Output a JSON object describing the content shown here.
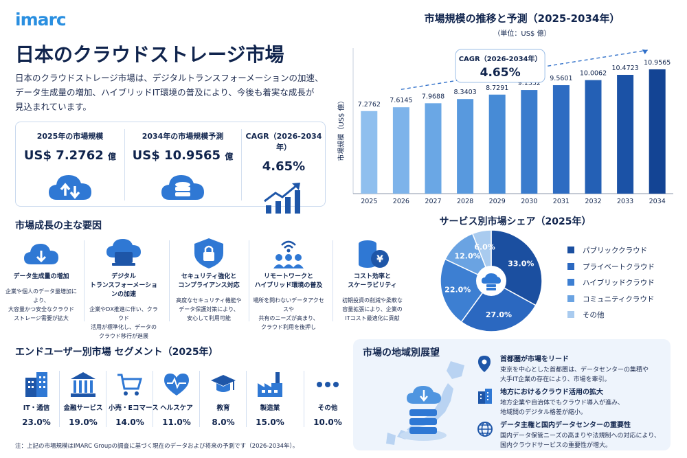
{
  "brand": {
    "logo": "imarc"
  },
  "title": "日本のクラウドストレージ市場",
  "intro": [
    "日本のクラウドストレージ市場は、デジタルトランスフォーメーションの加速、",
    "データ生成量の増加、ハイブリッドIT環境の普及により、今後も着実な成長が",
    "見込まれています。"
  ],
  "kpis": [
    {
      "title": "2025年の市場規模",
      "value": "US$ 7.2762",
      "unit": "億",
      "icon": "cloud-transfer-icon"
    },
    {
      "title": "2034年の市場規模予測",
      "value": "US$ 10.9565",
      "unit": "億",
      "icon": "cloud-database-icon"
    },
    {
      "title": "CAGR（2026-2034年）",
      "value": "4.65%",
      "unit": "",
      "icon": "growth-chart-icon"
    }
  ],
  "growth_drivers": {
    "heading": "市場成長の主な要因",
    "items": [
      {
        "icon": "cloud-download-icon",
        "title": [
          "データ生成量の増加"
        ],
        "desc": [
          "企業や個人のデータ量増加により、",
          "大容量かつ安全なクラウド",
          "ストレージ需要が拡大"
        ]
      },
      {
        "icon": "cloud-laptop-icon",
        "title": [
          "デジタル",
          "トランスフォーメーションの加速"
        ],
        "desc": [
          "企業やDX推進に伴い、クラウド",
          "活用が標準化し、データの",
          "クラウド移行が進展"
        ]
      },
      {
        "icon": "shield-lock-icon",
        "title": [
          "セキュリティ強化と",
          "コンプライアンス対応"
        ],
        "desc": [
          "高度なセキュリティ機能や",
          "データ保護対策により、",
          "安心して利用可能"
        ]
      },
      {
        "icon": "remote-team-icon",
        "title": [
          "リモートワークと",
          "ハイブリッド環境の普及"
        ],
        "desc": [
          "場所を問わないデータアクセスや",
          "共有のニーズが高まり、",
          "クラウド利用を後押し"
        ]
      },
      {
        "icon": "cost-coins-icon",
        "title": [
          "コスト効率と",
          "スケーラビリティ"
        ],
        "desc": [
          "初期投資の削減や柔軟な",
          "容量拡張により、企業の",
          "ITコスト最適化に貢献"
        ]
      }
    ]
  },
  "segments": {
    "heading": "エンドユーザー別市場 セグメント（2025年）",
    "items": [
      {
        "icon": "building-icon",
        "label": "IT・通信",
        "value": "23.0%"
      },
      {
        "icon": "bank-icon",
        "label": "金融サービス",
        "value": "19.0%"
      },
      {
        "icon": "shopping-cart-icon",
        "label": "小売・Eコマース",
        "value": "14.0%"
      },
      {
        "icon": "heart-pulse-icon",
        "label": "ヘルスケア",
        "value": "11.0%"
      },
      {
        "icon": "graduation-cap-icon",
        "label": "教育",
        "value": "8.0%"
      },
      {
        "icon": "factory-icon",
        "label": "製造業",
        "value": "15.0%"
      },
      {
        "icon": "more-dots-icon",
        "label": "その他",
        "value": "10.0%"
      }
    ]
  },
  "region": {
    "heading": "市場の地域別展望",
    "items": [
      {
        "icon": "map-pin-icon",
        "title": "首都圏が市場をリード",
        "desc": [
          "東京を中心とした首都圏は、データセンターの集積や",
          "大手IT企業の存在により、市場を牽引。"
        ]
      },
      {
        "icon": "office-building-icon",
        "title": "地方におけるクラウド活用の拡大",
        "desc": [
          "地方企業や自治体でもクラウド導入が進み、",
          "地域間のデジタル格差が縮小。"
        ]
      },
      {
        "icon": "globe-icon",
        "title": "データ主権と国内データセンターの重要性",
        "desc": [
          "国内データ保管ニーズの高まりや法規制への対応により、",
          "国内クラウドサービスの重要性が増大。"
        ]
      }
    ]
  },
  "note": "注：上記の市場規模はIMARC Groupの調査に基づく現在のデータおよび将来の予測です（2026-2034年）。",
  "colors": {
    "navy": "#10244d",
    "accent": "#2a8fe0",
    "light_bg": "#eef4fc"
  },
  "chart_data": [
    {
      "type": "bar",
      "title": "市場規模の推移と予測（2025-2034年）",
      "subtitle": "（単位：US$ 億）",
      "ylabel": "市場規模（US$ 億）",
      "xlabel": "",
      "categories": [
        "2025",
        "2026",
        "2027",
        "2028",
        "2029",
        "2030",
        "2031",
        "2032",
        "2033",
        "2034"
      ],
      "values": [
        7.2762,
        7.6145,
        7.9688,
        8.3403,
        8.7291,
        9.1352,
        9.5601,
        10.0062,
        10.4723,
        10.9565
      ],
      "value_labels": [
        "7.2762",
        "7.6145",
        "7.9688",
        "8.3403",
        "8.7291",
        "9.1352",
        "9.5601",
        "10.0062",
        "10.4723",
        "10.9565"
      ],
      "annotation": {
        "label": "CAGR（2026-2034年）",
        "value": "4.65%"
      },
      "ylim": [
        0,
        11.5
      ],
      "grid": false,
      "bar_colors": [
        "#8fbfee",
        "#7db3ea",
        "#6aa7e5",
        "#5899de",
        "#478bd6",
        "#3a7ccd",
        "#2e6cc2",
        "#2460b5",
        "#1b52a6",
        "#134494"
      ]
    },
    {
      "type": "pie",
      "title": "サービス別市場シェア（2025年）",
      "labels": [
        "パブリッククラウド",
        "プライベートクラウド",
        "ハイブリッドクラウド",
        "コミュニティクラウド",
        "その他"
      ],
      "values": [
        33.0,
        27.0,
        22.0,
        12.0,
        6.0
      ],
      "value_labels": [
        "33.0%",
        "27.0%",
        "22.0%",
        "12.0%",
        "6.0%"
      ],
      "colors": [
        "#1b4fa0",
        "#2b68c0",
        "#3d7fd2",
        "#6aa3e2",
        "#a9cbef"
      ],
      "legend": "right"
    }
  ]
}
